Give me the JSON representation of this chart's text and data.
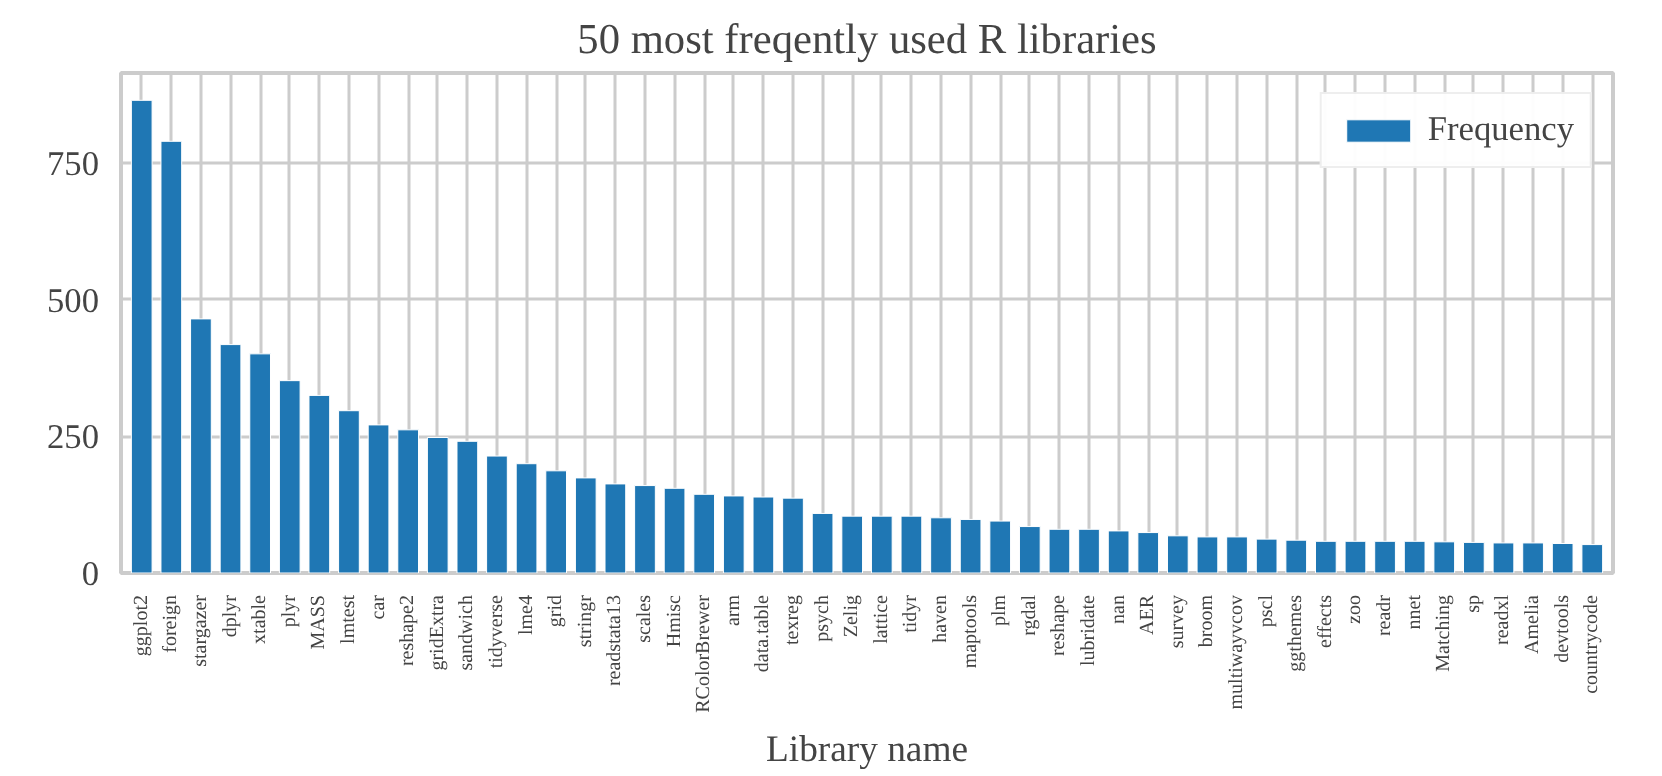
{
  "chart_data": {
    "type": "bar",
    "title": "50 most freqently used R libraries",
    "xlabel": "Library name",
    "categories": [
      "ggplot2",
      "foreign",
      "stargazer",
      "dplyr",
      "xtable",
      "plyr",
      "MASS",
      "lmtest",
      "car",
      "reshape2",
      "gridExtra",
      "sandwich",
      "tidyverse",
      "lme4",
      "grid",
      "stringr",
      "readstata13",
      "scales",
      "Hmisc",
      "RColorBrewer",
      "arm",
      "data.table",
      "texreg",
      "psych",
      "Zelig",
      "lattice",
      "tidyr",
      "haven",
      "maptools",
      "plm",
      "rgdal",
      "reshape",
      "lubridate",
      "nan",
      "AER",
      "survey",
      "broom",
      "multiwayvcov",
      "pscl",
      "ggthemes",
      "effects",
      "zoo",
      "readr",
      "nnet",
      "Matching",
      "sp",
      "readxl",
      "Amelia",
      "devtools",
      "countrycode"
    ],
    "series": [
      {
        "name": "Frequency",
        "color": "#1f77b4",
        "values": [
          865,
          790,
          465,
          418,
          401,
          352,
          325,
          297,
          271,
          262,
          248,
          241,
          214,
          200,
          187,
          174,
          163,
          160,
          155,
          144,
          141,
          139,
          137,
          109,
          104,
          104,
          104,
          101,
          98,
          95,
          85,
          80,
          80,
          77,
          74,
          68,
          66,
          66,
          62,
          60,
          58,
          58,
          58,
          58,
          57,
          56,
          55,
          55,
          54,
          52
        ]
      }
    ],
    "ylim": [
      0,
      915
    ],
    "yticks": [
      0,
      250,
      500,
      750
    ],
    "grid": true,
    "legend": "top right"
  }
}
